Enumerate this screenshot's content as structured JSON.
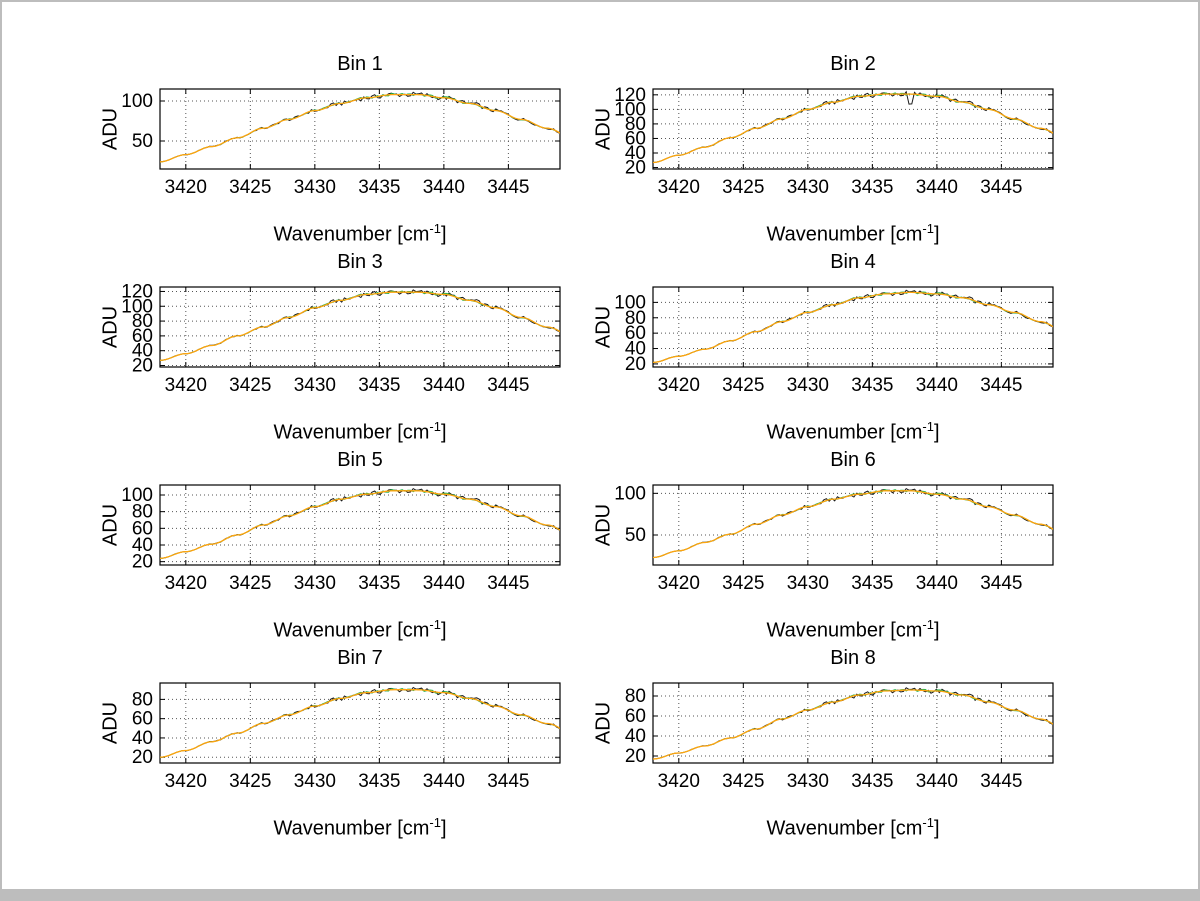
{
  "figure": {
    "background": "#ffffff",
    "frame_color": "#bdbdbd"
  },
  "chart_data": {
    "type": "line",
    "layout": "4x2-subplot-grid",
    "grid": "dotted",
    "legend": "none",
    "x": [
      3418,
      3420,
      3422,
      3424,
      3426,
      3428,
      3430,
      3432,
      3434,
      3436,
      3438,
      3440,
      3442,
      3444,
      3446,
      3448,
      3450
    ],
    "xticks": [
      3420,
      3425,
      3430,
      3435,
      3440,
      3445
    ],
    "xlim": [
      3418,
      3449
    ],
    "xlabel": "Wavenumber [cm⁻¹]",
    "xlabel_parts": {
      "text": "Wavenumber [cm",
      "sup": "-1",
      "close": "]"
    },
    "ylabel": "ADU",
    "series_colors": {
      "raw": "#1a1a1a",
      "smooth": "#22b14c",
      "fit": "#ffa40d"
    },
    "panels": [
      {
        "title": "Bin 1",
        "values": [
          24,
          33,
          43,
          54,
          66,
          77,
          88,
          97,
          104,
          108,
          108,
          104,
          97,
          88,
          77,
          66,
          54
        ],
        "yticks": [
          50,
          100
        ],
        "ylim": [
          15,
          115
        ]
      },
      {
        "title": "Bin 2",
        "values": [
          27,
          37,
          48,
          61,
          74,
          87,
          100,
          110,
          118,
          121,
          121,
          118,
          110,
          100,
          87,
          74,
          61
        ],
        "yticks": [
          20,
          40,
          60,
          80,
          100,
          120
        ],
        "ylim": [
          18,
          128
        ],
        "spike": {
          "x": 3438,
          "depth": 0.12
        }
      },
      {
        "title": "Bin 3",
        "values": [
          27,
          36,
          47,
          60,
          72,
          85,
          98,
          108,
          116,
          119,
          119,
          116,
          108,
          98,
          85,
          72,
          60
        ],
        "yticks": [
          20,
          40,
          60,
          80,
          100,
          120
        ],
        "ylim": [
          18,
          126
        ]
      },
      {
        "title": "Bin 4",
        "values": [
          22,
          30,
          39,
          50,
          62,
          75,
          87,
          97,
          106,
          111,
          113,
          111,
          106,
          97,
          87,
          75,
          62
        ],
        "yticks": [
          20,
          40,
          60,
          80,
          100
        ],
        "ylim": [
          16,
          120
        ]
      },
      {
        "title": "Bin 5",
        "values": [
          24,
          32,
          41,
          52,
          64,
          75,
          86,
          95,
          101,
          105,
          105,
          101,
          95,
          86,
          75,
          64,
          52
        ],
        "yticks": [
          20,
          40,
          60,
          80,
          100
        ],
        "ylim": [
          16,
          112
        ]
      },
      {
        "title": "Bin 6",
        "values": [
          23,
          31,
          41,
          51,
          63,
          74,
          84,
          93,
          99,
          103,
          103,
          99,
          93,
          84,
          74,
          63,
          51
        ],
        "yticks": [
          50,
          100
        ],
        "ylim": [
          14,
          110
        ]
      },
      {
        "title": "Bin 7",
        "values": [
          20,
          27,
          36,
          45,
          55,
          64,
          73,
          81,
          87,
          90,
          90,
          87,
          81,
          73,
          64,
          55,
          45
        ],
        "yticks": [
          20,
          40,
          60,
          80
        ],
        "ylim": [
          14,
          97
        ]
      },
      {
        "title": "Bin 8",
        "values": [
          17,
          23,
          30,
          38,
          47,
          57,
          66,
          74,
          81,
          85,
          86,
          85,
          81,
          74,
          66,
          57,
          47
        ],
        "yticks": [
          20,
          40,
          60,
          80
        ],
        "ylim": [
          13,
          93
        ]
      }
    ]
  }
}
